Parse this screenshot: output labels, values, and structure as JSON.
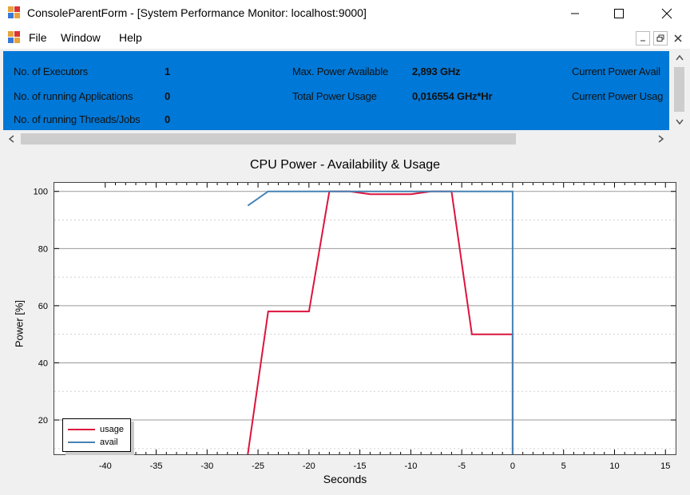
{
  "window": {
    "title": "ConsoleParentForm - [System Performance Monitor:  localhost:9000]"
  },
  "menu": {
    "items": [
      "File",
      "Window",
      "Help"
    ]
  },
  "info": {
    "executors_label": "No. of Executors",
    "executors_value": "1",
    "running_apps_label": "No. of running Applications",
    "running_apps_value": "0",
    "running_threads_label": "No. of running Threads/Jobs",
    "running_threads_value": "0",
    "max_power_label": "Max. Power Available",
    "max_power_value": "2,893 GHz",
    "total_usage_label": "Total Power Usage",
    "total_usage_value": "0,016554 GHz*Hr",
    "current_avail_label": "Current Power Avail",
    "current_usage_label": "Current Power Usag"
  },
  "colors": {
    "info_panel": "#0078d7",
    "usage_line": "#dc143c",
    "avail_line": "#4682b4"
  },
  "chart_data": {
    "type": "line",
    "title": "CPU Power - Availability & Usage",
    "xlabel": "Seconds",
    "ylabel": "Power [%]",
    "xlim": [
      -45,
      16
    ],
    "ylim": [
      8,
      103
    ],
    "x_ticks": [
      "-40",
      "-35",
      "-30",
      "-25",
      "-20",
      "-15",
      "-10",
      "-5",
      "0",
      "5",
      "10",
      "15"
    ],
    "y_ticks": [
      "100",
      "80",
      "60",
      "40",
      "20"
    ],
    "legend_position": "bottom-left",
    "series": [
      {
        "name": "usage",
        "color": "#dc143c",
        "points": [
          [
            -26,
            8
          ],
          [
            -24,
            58
          ],
          [
            -20,
            58
          ],
          [
            -18,
            100
          ],
          [
            -16,
            100
          ],
          [
            -14,
            99
          ],
          [
            -10,
            99
          ],
          [
            -8,
            100
          ],
          [
            -6,
            100
          ],
          [
            -4,
            50
          ],
          [
            0,
            50
          ],
          [
            0,
            8
          ]
        ]
      },
      {
        "name": "avail",
        "color": "#4682b4",
        "points": [
          [
            -26,
            95
          ],
          [
            -24,
            100
          ],
          [
            -16,
            100
          ],
          [
            -10,
            100
          ],
          [
            0,
            100
          ],
          [
            0,
            8
          ]
        ]
      }
    ]
  }
}
